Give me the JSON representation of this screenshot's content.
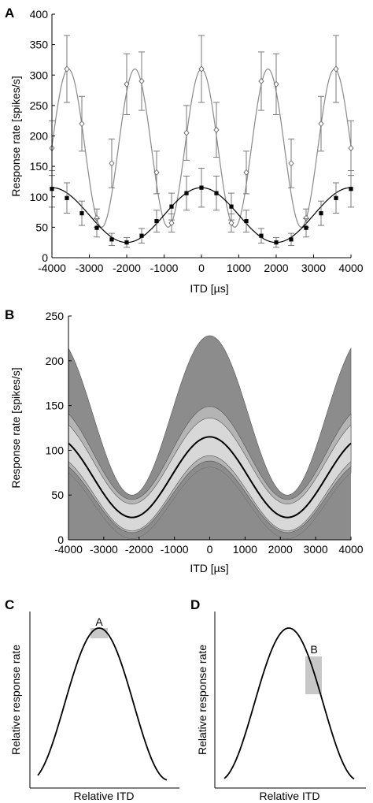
{
  "colors": {
    "tuning_open": "#8a8a8a",
    "tuning_filled": "#000000",
    "band_dark": "#8c8c8c",
    "band_mid": "#b4b4b4",
    "band_light": "#d8d8d8",
    "mean_line": "#000000",
    "shade_box": "#c8c8c8"
  },
  "chart_data": [
    {
      "panel": "A",
      "type": "line",
      "xlabel": "ITD [µs]",
      "ylabel": "Response rate [spikes/s]",
      "xlim": [
        -4000,
        4000
      ],
      "ylim": [
        0,
        400
      ],
      "xticks": [
        -4000,
        -3000,
        -2000,
        -1000,
        0,
        1000,
        2000,
        3000,
        4000
      ],
      "yticks": [
        0,
        50,
        100,
        150,
        200,
        250,
        300,
        350,
        400
      ],
      "series": [
        {
          "marker": "open-diamond",
          "fit": {
            "mean": 180,
            "amplitude": 130,
            "period": 1780
          },
          "x": [
            -4000,
            -3600,
            -3200,
            -2800,
            -2400,
            -2000,
            -1600,
            -1200,
            -800,
            -400,
            0,
            400,
            800,
            1200,
            1600,
            2000,
            2400,
            2800,
            3200,
            3600,
            4000
          ],
          "y": [
            180,
            310,
            220,
            65,
            155,
            285,
            290,
            140,
            57,
            205,
            310,
            210,
            57,
            140,
            290,
            285,
            155,
            65,
            220,
            310,
            180
          ],
          "err": [
            45,
            55,
            45,
            15,
            40,
            50,
            48,
            35,
            15,
            45,
            55,
            45,
            15,
            35,
            48,
            50,
            40,
            15,
            45,
            55,
            45
          ]
        },
        {
          "marker": "filled-square",
          "fit": {
            "mean": 70,
            "amplitude": 45,
            "period": 4000
          },
          "x": [
            -4000,
            -3600,
            -3200,
            -2800,
            -2400,
            -2000,
            -1600,
            -1200,
            -800,
            -400,
            0,
            400,
            800,
            1200,
            1600,
            2000,
            2400,
            2800,
            3200,
            3600,
            4000
          ],
          "y": [
            113,
            98,
            73,
            49,
            30,
            25,
            36,
            60,
            84,
            106,
            115,
            106,
            84,
            60,
            36,
            25,
            30,
            49,
            73,
            98,
            113
          ],
          "err": [
            30,
            25,
            20,
            15,
            10,
            8,
            12,
            18,
            22,
            28,
            32,
            28,
            22,
            18,
            12,
            8,
            10,
            15,
            20,
            25,
            30
          ]
        }
      ]
    },
    {
      "panel": "B",
      "type": "area",
      "xlabel": "ITD [µs]",
      "ylabel": "Response rate [spikes/s]",
      "xlim": [
        -4000,
        4000
      ],
      "ylim": [
        0,
        250
      ],
      "xticks": [
        -4000,
        -3000,
        -2000,
        -1000,
        0,
        1000,
        2000,
        3000,
        4000
      ],
      "yticks": [
        0,
        50,
        100,
        150,
        200,
        250
      ],
      "mean": {
        "mean": 70,
        "amplitude": 45,
        "period": 4400
      },
      "bands": [
        {
          "shade": "dark",
          "upper": {
            "mean": 139,
            "amplitude": 89
          },
          "lower": {
            "mean": 41,
            "amplitude": 40
          }
        },
        {
          "shade": "mid",
          "upper": {
            "mean": 97,
            "amplitude": 52
          },
          "lower": {
            "mean": 48,
            "amplitude": 40
          }
        },
        {
          "shade": "light",
          "upper": {
            "mean": 88,
            "amplitude": 48
          },
          "lower": {
            "mean": 52,
            "amplitude": 42
          }
        }
      ]
    },
    {
      "panel": "C",
      "type": "line",
      "xlabel": "Relative ITD",
      "ylabel": "Relative response rate",
      "highlight_label": "A"
    },
    {
      "panel": "D",
      "type": "line",
      "xlabel": "Relative ITD",
      "ylabel": "Relative response rate",
      "highlight_label": "B"
    }
  ]
}
